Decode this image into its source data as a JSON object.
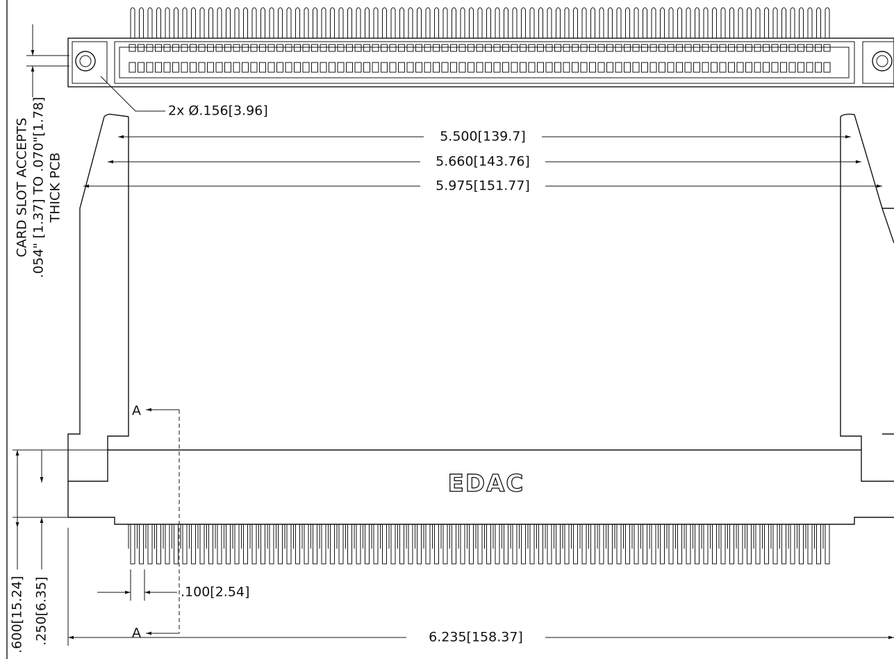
{
  "callout": "2x Ø.156[3.96]",
  "dimensions": {
    "inner": "5.500[139.7]",
    "middle": "5.660[143.76]",
    "outer": "5.975[151.77]",
    "overall": "6.235[158.37]",
    "pitch": ".100[2.54]",
    "height": ".600[15.24]",
    "offset": ".250[6.35]"
  },
  "section_labels": [
    "A",
    "A"
  ],
  "logo": "EDAC",
  "note": [
    "CARD SLOT ACCEPTS",
    ".054\" [1.37] TO .070\"[1.78]",
    "THICK PCB"
  ]
}
